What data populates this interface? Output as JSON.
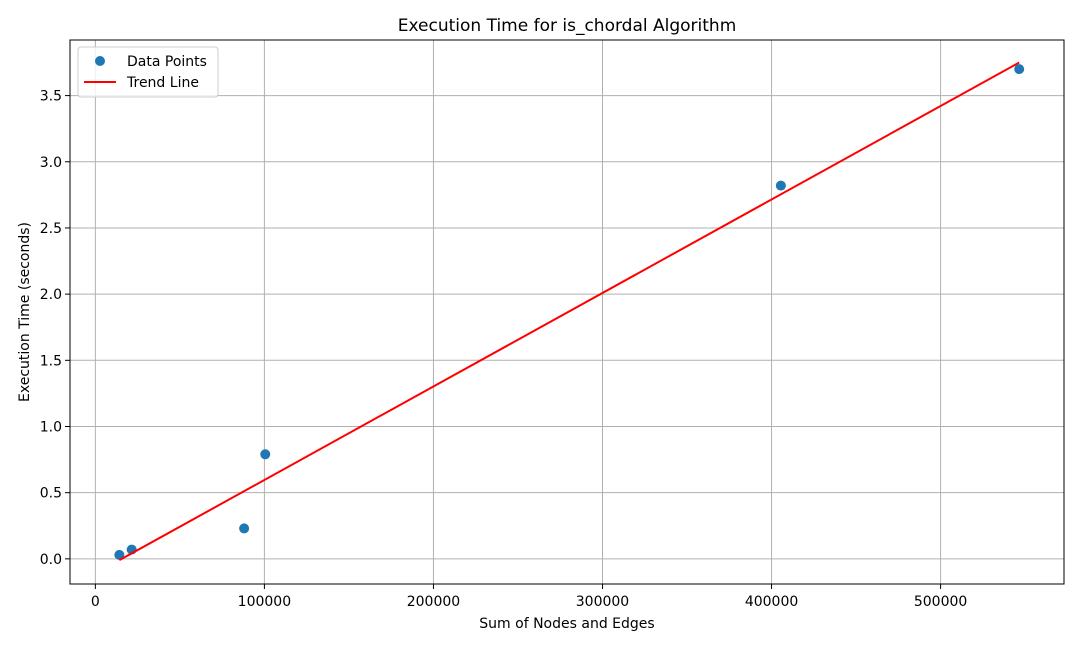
{
  "chart_data": {
    "type": "scatter",
    "title": "Execution Time for is_chordal Algorithm",
    "xlabel": "Sum of Nodes and Edges",
    "ylabel": "Execution Time (seconds)",
    "xlim": [
      -15000,
      573000
    ],
    "ylim": [
      -0.19,
      3.92
    ],
    "xticks": [
      0,
      100000,
      200000,
      300000,
      400000,
      500000
    ],
    "yticks": [
      0.0,
      0.5,
      1.0,
      1.5,
      2.0,
      2.5,
      3.0,
      3.5
    ],
    "xtick_labels": [
      "0",
      "100000",
      "200000",
      "300000",
      "400000",
      "500000"
    ],
    "ytick_labels": [
      "0.0",
      "0.5",
      "1.0",
      "1.5",
      "2.0",
      "2.5",
      "3.0",
      "3.5"
    ],
    "grid": true,
    "legend_position": "top-left",
    "series": [
      {
        "name": "Data Points",
        "kind": "scatter",
        "color": "#1f77b4",
        "points": [
          {
            "x": 14200,
            "y": 0.03
          },
          {
            "x": 21500,
            "y": 0.07
          },
          {
            "x": 88000,
            "y": 0.23
          },
          {
            "x": 100500,
            "y": 0.79
          },
          {
            "x": 405500,
            "y": 2.82
          },
          {
            "x": 546500,
            "y": 3.7
          }
        ]
      },
      {
        "name": "Trend Line",
        "kind": "line",
        "color": "#ff0000",
        "points": [
          {
            "x": 14200,
            "y": -0.01
          },
          {
            "x": 546500,
            "y": 3.75
          }
        ]
      }
    ]
  }
}
